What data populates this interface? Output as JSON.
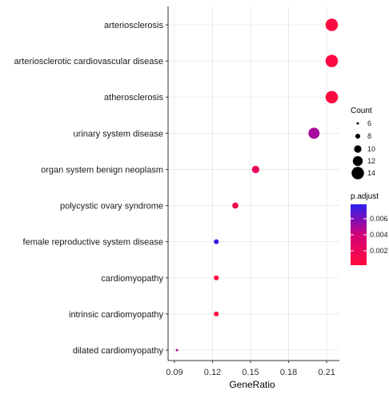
{
  "chart_data": {
    "type": "scatter",
    "xlabel": "GeneRatio",
    "ylabel": "",
    "xlim": [
      0.085,
      0.22
    ],
    "xticks": [
      "0.09",
      "0.12",
      "0.15",
      "0.18",
      "0.21"
    ],
    "grid": true,
    "legend_placement": "right",
    "categories": [
      "arteriosclerosis",
      "arteriosclerotic cardiovascular disease",
      "atherosclerosis",
      "urinary system disease",
      "organ system benign neoplasm",
      "polycystic ovary syndrome",
      "female reproductive system disease",
      "cardiomyopathy",
      "intrinsic cardiomyopathy",
      "dilated cardiomyopathy"
    ],
    "points": [
      {
        "term": "arteriosclerosis",
        "gene_ratio": 0.214,
        "count": 14,
        "p_adjust": 0.0005
      },
      {
        "term": "arteriosclerotic cardiovascular disease",
        "gene_ratio": 0.214,
        "count": 14,
        "p_adjust": 0.0005
      },
      {
        "term": "atherosclerosis",
        "gene_ratio": 0.214,
        "count": 14,
        "p_adjust": 0.0005
      },
      {
        "term": "urinary system disease",
        "gene_ratio": 0.2,
        "count": 13,
        "p_adjust": 0.005
      },
      {
        "term": "organ system benign neoplasm",
        "gene_ratio": 0.154,
        "count": 10,
        "p_adjust": 0.0022
      },
      {
        "term": "polycystic ovary syndrome",
        "gene_ratio": 0.138,
        "count": 9,
        "p_adjust": 0.0012
      },
      {
        "term": "female reproductive system disease",
        "gene_ratio": 0.123,
        "count": 8,
        "p_adjust": 0.0075
      },
      {
        "term": "cardiomyopathy",
        "gene_ratio": 0.123,
        "count": 8,
        "p_adjust": 0.0007
      },
      {
        "term": "intrinsic cardiomyopathy",
        "gene_ratio": 0.123,
        "count": 8,
        "p_adjust": 0.0007
      },
      {
        "term": "dilated cardiomyopathy",
        "gene_ratio": 0.092,
        "count": 6,
        "p_adjust": 0.0045
      }
    ],
    "size_legend": {
      "title": "Count",
      "values": [
        6,
        8,
        10,
        12,
        14
      ]
    },
    "color_legend": {
      "title": "p.adjust",
      "ticks": [
        0.006,
        0.004,
        0.002
      ],
      "tick_labels": [
        "0.006",
        "0.004",
        "0.002"
      ],
      "range": [
        0.0002,
        0.0078
      ],
      "low_color": "#ff0a3c",
      "high_color": "#2b1ff0"
    },
    "colors": {
      "grid": "#e6e6e6",
      "axis": "#333333"
    }
  }
}
